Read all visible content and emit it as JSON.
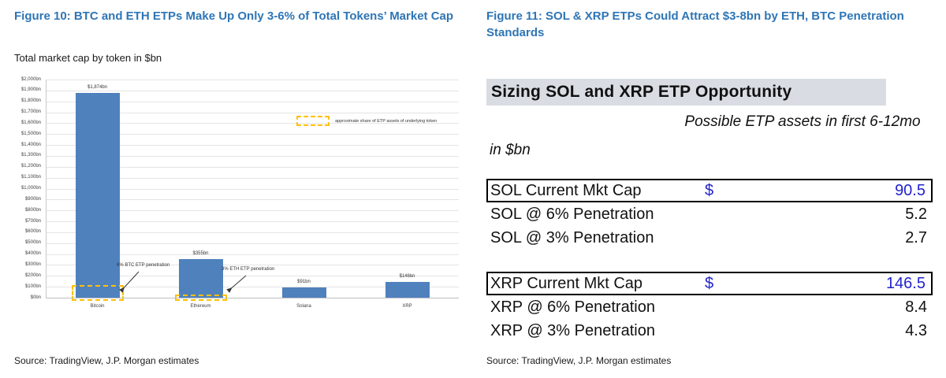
{
  "left": {
    "title": "Figure 10: BTC and ETH ETPs Make Up Only 3-6% of Total Tokens’ Market Cap",
    "subtitle": "Total market cap by token in $bn",
    "source": "Source: TradingView, J.P. Morgan estimates"
  },
  "chart_data": {
    "type": "bar",
    "title": "Total market cap by token in $bn",
    "categories": [
      "Bitcoin",
      "Ethereum",
      "Solana",
      "XRP"
    ],
    "values": [
      1874,
      355,
      91,
      146
    ],
    "bar_labels": [
      "$1,874bn",
      "$355bn",
      "$91bn",
      "$146bn"
    ],
    "ylim": [
      0,
      2000
    ],
    "ytick_step": 100,
    "ytick_format": "$#,##0bn",
    "grid": true,
    "bar_color": "#4f81bd",
    "etp_share_color": "#ffc000",
    "etp_share_values": [
      112,
      11,
      null,
      null
    ],
    "legend": "approximate share of ETP assets of underlying token",
    "annotations": [
      {
        "text": "6% BTC ETP penetration",
        "target": "Bitcoin"
      },
      {
        "text": "3% ETH ETP penetration",
        "target": "Ethereum"
      }
    ]
  },
  "right": {
    "title": "Figure 11: SOL & XRP ETPs Could Attract $3-8bn by ETH, BTC Penetration Standards",
    "table_title": "Sizing SOL and XRP ETP Opportunity",
    "unit_header": "in $bn",
    "value_header": "Possible ETP assets in first 6-12mo",
    "rows": [
      {
        "label": "SOL Current Mkt Cap",
        "currency": "$",
        "value": "90.5"
      },
      {
        "label": "SOL @ 6% Penetration",
        "currency": "",
        "value": "5.2"
      },
      {
        "label": "SOL @ 3% Penetration",
        "currency": "",
        "value": "2.7"
      },
      {
        "label": "XRP Current Mkt Cap",
        "currency": "$",
        "value": "146.5"
      },
      {
        "label": "XRP @ 6% Penetration",
        "currency": "",
        "value": "8.4"
      },
      {
        "label": "XRP @ 3% Penetration",
        "currency": "",
        "value": "4.3"
      }
    ],
    "source": "Source: TradingView, J.P. Morgan estimates"
  }
}
